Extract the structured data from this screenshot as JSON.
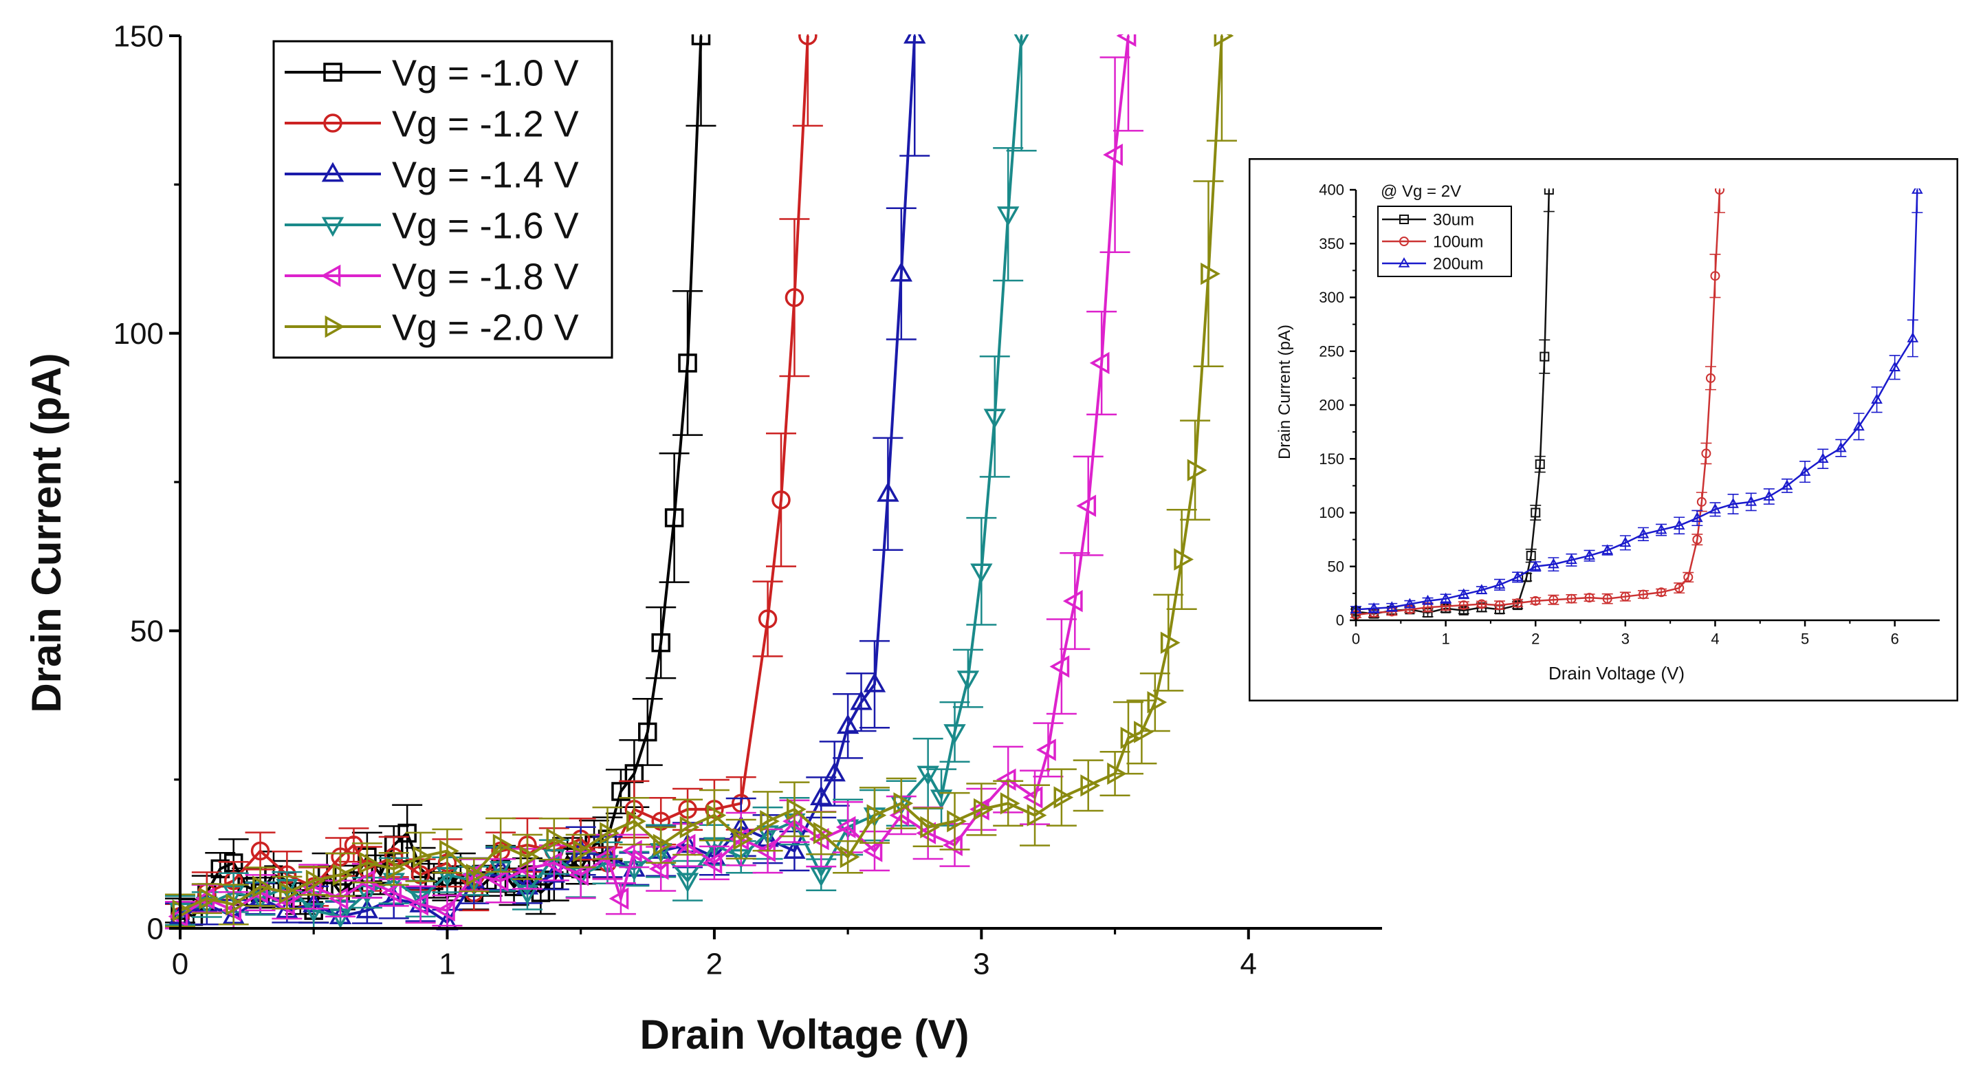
{
  "chart_data": [
    {
      "type": "line",
      "title": "",
      "xlabel": "Drain Voltage (V)",
      "ylabel": "Drain Current (pA)",
      "xlim": [
        0,
        4.5
      ],
      "ylim": [
        0,
        150
      ],
      "xticks": [
        "0",
        "1",
        "2",
        "3",
        "4"
      ],
      "yticks": [
        "0",
        "50",
        "100",
        "150"
      ],
      "legend_position": "top-left",
      "series": [
        {
          "name": "Vg = -1.0 V",
          "color": "#000000",
          "marker": "square",
          "x": [
            0.0,
            0.05,
            0.1,
            0.15,
            0.2,
            0.25,
            0.3,
            0.35,
            0.4,
            0.45,
            0.5,
            0.55,
            0.6,
            0.65,
            0.7,
            0.75,
            0.8,
            0.85,
            0.9,
            0.95,
            1.0,
            1.05,
            1.1,
            1.15,
            1.2,
            1.25,
            1.3,
            1.35,
            1.4,
            1.45,
            1.5,
            1.55,
            1.6,
            1.65,
            1.7,
            1.75,
            1.8,
            1.85,
            1.9,
            1.95
          ],
          "y": [
            3,
            2,
            6,
            10,
            11,
            7,
            6,
            9,
            8,
            5,
            3,
            9,
            6,
            8,
            12,
            9,
            14,
            16,
            10,
            8,
            7,
            9,
            6,
            8,
            10,
            7,
            9,
            6,
            8,
            12,
            10,
            14,
            15,
            23,
            26,
            33,
            48,
            69,
            95,
            150
          ]
        },
        {
          "name": "Vg = -1.2 V",
          "color": "#cc2222",
          "marker": "circle",
          "x": [
            0.0,
            0.1,
            0.2,
            0.3,
            0.4,
            0.5,
            0.6,
            0.65,
            0.7,
            0.8,
            0.9,
            1.0,
            1.1,
            1.2,
            1.3,
            1.4,
            1.5,
            1.6,
            1.7,
            1.8,
            1.9,
            2.0,
            2.1,
            2.2,
            2.25,
            2.3,
            2.35
          ],
          "y": [
            2,
            6,
            8,
            13,
            9,
            7,
            12,
            14,
            10,
            12,
            9,
            11,
            6,
            13,
            14,
            13,
            15,
            11,
            20,
            18,
            20,
            20,
            21,
            52,
            72,
            106,
            150
          ]
        },
        {
          "name": "Vg = -1.4 V",
          "color": "#1a1aaa",
          "marker": "triangle-up",
          "x": [
            0.0,
            0.1,
            0.2,
            0.3,
            0.4,
            0.5,
            0.6,
            0.7,
            0.8,
            0.9,
            1.0,
            1.1,
            1.2,
            1.3,
            1.4,
            1.5,
            1.6,
            1.7,
            1.8,
            1.9,
            2.0,
            2.1,
            2.2,
            2.3,
            2.4,
            2.45,
            2.5,
            2.55,
            2.6,
            2.65,
            2.7,
            2.75
          ],
          "y": [
            2,
            4,
            2,
            5,
            3,
            4,
            2,
            3,
            5,
            4,
            1,
            8,
            10,
            7,
            9,
            13,
            12,
            10,
            13,
            14,
            12,
            17,
            15,
            13,
            22,
            26,
            34,
            38,
            41,
            73,
            110,
            150
          ]
        },
        {
          "name": "Vg = -1.6 V",
          "color": "#1a8a8a",
          "marker": "triangle-down",
          "x": [
            0.0,
            0.1,
            0.2,
            0.3,
            0.4,
            0.5,
            0.6,
            0.7,
            0.8,
            0.9,
            1.0,
            1.1,
            1.2,
            1.3,
            1.4,
            1.5,
            1.6,
            1.7,
            1.8,
            1.9,
            2.0,
            2.1,
            2.2,
            2.3,
            2.4,
            2.5,
            2.6,
            2.7,
            2.8,
            2.85,
            2.9,
            2.95,
            3.0,
            3.05,
            3.1,
            3.15
          ],
          "y": [
            3,
            4,
            6,
            5,
            7,
            3,
            2,
            6,
            8,
            5,
            9,
            8,
            10,
            6,
            12,
            9,
            11,
            10,
            13,
            8,
            14,
            12,
            16,
            18,
            9,
            17,
            19,
            21,
            26,
            22,
            33,
            42,
            60,
            86,
            120,
            150
          ]
        },
        {
          "name": "Vg = -1.8 V",
          "color": "#dd22cc",
          "marker": "triangle-left",
          "x": [
            0.0,
            0.1,
            0.2,
            0.3,
            0.4,
            0.5,
            0.6,
            0.7,
            0.8,
            0.9,
            1.0,
            1.1,
            1.2,
            1.3,
            1.4,
            1.5,
            1.6,
            1.65,
            1.7,
            1.8,
            1.9,
            2.0,
            2.1,
            2.2,
            2.3,
            2.4,
            2.5,
            2.6,
            2.7,
            2.8,
            2.9,
            3.0,
            3.1,
            3.2,
            3.25,
            3.3,
            3.35,
            3.4,
            3.45,
            3.5,
            3.55
          ],
          "y": [
            2,
            5,
            3,
            6,
            4,
            7,
            5,
            8,
            6,
            4,
            3,
            9,
            8,
            10,
            11,
            9,
            12,
            5,
            13,
            10,
            14,
            11,
            15,
            13,
            18,
            15,
            17,
            13,
            19,
            16,
            14,
            20,
            25,
            22,
            30,
            44,
            55,
            71,
            95,
            130,
            150
          ]
        },
        {
          "name": "Vg = -2.0 V",
          "color": "#8a8a10",
          "marker": "triangle-right",
          "x": [
            0.0,
            0.1,
            0.2,
            0.3,
            0.4,
            0.5,
            0.6,
            0.7,
            0.8,
            0.9,
            1.0,
            1.1,
            1.2,
            1.3,
            1.4,
            1.5,
            1.6,
            1.7,
            1.8,
            1.9,
            2.0,
            2.1,
            2.2,
            2.3,
            2.4,
            2.5,
            2.6,
            2.7,
            2.8,
            2.9,
            3.0,
            3.1,
            3.2,
            3.3,
            3.4,
            3.5,
            3.55,
            3.6,
            3.65,
            3.7,
            3.75,
            3.8,
            3.85,
            3.9
          ],
          "y": [
            3,
            5,
            4,
            7,
            6,
            8,
            9,
            11,
            10,
            12,
            13,
            9,
            14,
            12,
            15,
            13,
            16,
            18,
            14,
            17,
            19,
            15,
            18,
            20,
            16,
            12,
            19,
            21,
            17,
            18,
            20,
            21,
            19,
            22,
            24,
            26,
            32,
            33,
            38,
            48,
            62,
            77,
            110,
            150
          ]
        }
      ]
    },
    {
      "type": "line",
      "title": "@ Vg = 2V",
      "xlabel": "Drain Voltage (V)",
      "ylabel": "Drain Current (pA)",
      "xlim": [
        0,
        6.5
      ],
      "ylim": [
        0,
        400
      ],
      "xticks": [
        "0",
        "1",
        "2",
        "3",
        "4",
        "5",
        "6"
      ],
      "yticks": [
        "0",
        "50",
        "100",
        "150",
        "200",
        "250",
        "300",
        "350",
        "400"
      ],
      "legend_position": "top-left",
      "series": [
        {
          "name": "30um",
          "color": "#111111",
          "marker": "square",
          "x": [
            0.0,
            0.2,
            0.4,
            0.6,
            0.8,
            1.0,
            1.2,
            1.4,
            1.6,
            1.8,
            1.9,
            1.95,
            2.0,
            2.05,
            2.1,
            2.15
          ],
          "y": [
            8,
            6,
            9,
            10,
            7,
            11,
            9,
            12,
            10,
            14,
            40,
            60,
            100,
            145,
            245,
            400
          ]
        },
        {
          "name": "100um",
          "color": "#cc3333",
          "marker": "circle",
          "x": [
            0.0,
            0.2,
            0.4,
            0.6,
            0.8,
            1.0,
            1.2,
            1.4,
            1.6,
            1.8,
            2.0,
            2.2,
            2.4,
            2.6,
            2.8,
            3.0,
            3.2,
            3.4,
            3.6,
            3.7,
            3.8,
            3.85,
            3.9,
            3.95,
            4.0,
            4.05
          ],
          "y": [
            5,
            7,
            8,
            10,
            12,
            13,
            14,
            15,
            14,
            16,
            18,
            19,
            20,
            21,
            20,
            22,
            24,
            26,
            30,
            40,
            75,
            110,
            155,
            225,
            320,
            400
          ]
        },
        {
          "name": "200um",
          "color": "#1a1acc",
          "marker": "triangle-up",
          "x": [
            0.0,
            0.2,
            0.4,
            0.6,
            0.8,
            1.0,
            1.2,
            1.4,
            1.6,
            1.8,
            2.0,
            2.2,
            2.4,
            2.6,
            2.8,
            3.0,
            3.2,
            3.4,
            3.6,
            3.8,
            4.0,
            4.2,
            4.4,
            4.6,
            4.8,
            5.0,
            5.2,
            5.4,
            5.6,
            5.8,
            6.0,
            6.2,
            6.25
          ],
          "y": [
            10,
            11,
            12,
            15,
            18,
            20,
            24,
            28,
            33,
            40,
            50,
            52,
            56,
            60,
            65,
            72,
            80,
            84,
            88,
            95,
            103,
            108,
            110,
            115,
            125,
            138,
            150,
            160,
            180,
            205,
            235,
            262,
            400
          ]
        }
      ]
    }
  ]
}
